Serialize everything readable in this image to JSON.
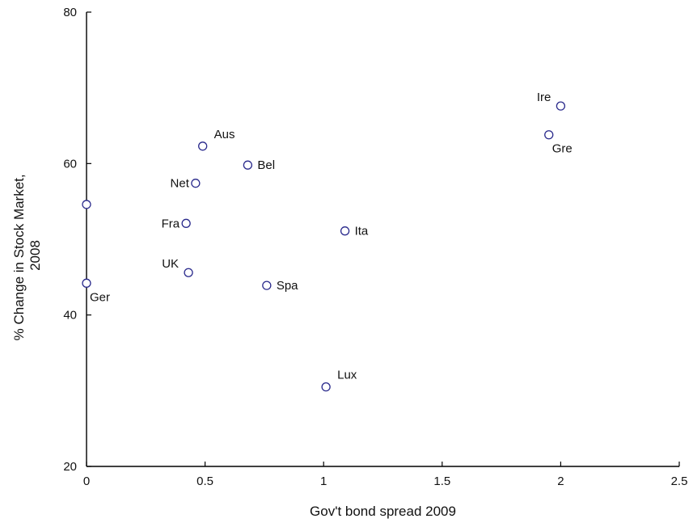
{
  "chart_data": {
    "type": "scatter",
    "xlabel": "Gov't bond spread 2009",
    "ylabel_lines": [
      "% Change in Stock Market,",
      "2008"
    ],
    "xlim": [
      0,
      2.5
    ],
    "ylim": [
      20,
      80
    ],
    "xticks": [
      {
        "value": 0,
        "label": "0"
      },
      {
        "value": 0.5,
        "label": "0.5"
      },
      {
        "value": 1,
        "label": "1"
      },
      {
        "value": 1.5,
        "label": "1.5"
      },
      {
        "value": 2,
        "label": "2"
      },
      {
        "value": 2.5,
        "label": "2.5"
      }
    ],
    "yticks": [
      {
        "value": 20,
        "label": "20"
      },
      {
        "value": 40,
        "label": "40"
      },
      {
        "value": 60,
        "label": "60"
      },
      {
        "value": 80,
        "label": "80"
      }
    ],
    "grid": false,
    "marker_color": "#2a2a8c",
    "points": [
      {
        "label": "Ire",
        "x": 2.0,
        "y": 67.6,
        "label_side": "upper-left"
      },
      {
        "label": "Gre",
        "x": 1.95,
        "y": 63.8,
        "label_side": "lower-right"
      },
      {
        "label": "Aus",
        "x": 0.49,
        "y": 62.3,
        "label_side": "upper-right"
      },
      {
        "label": "Bel",
        "x": 0.68,
        "y": 59.8,
        "label_side": "right"
      },
      {
        "label": "Net",
        "x": 0.46,
        "y": 57.4,
        "label_side": "left"
      },
      {
        "label": "",
        "x": 0.0,
        "y": 54.6,
        "label_side": "none"
      },
      {
        "label": "Fra",
        "x": 0.42,
        "y": 52.1,
        "label_side": "left"
      },
      {
        "label": "Ita",
        "x": 1.09,
        "y": 51.1,
        "label_side": "right"
      },
      {
        "label": "UK",
        "x": 0.43,
        "y": 45.6,
        "label_side": "upper-left"
      },
      {
        "label": "Ger",
        "x": 0.0,
        "y": 44.2,
        "label_side": "lower-right"
      },
      {
        "label": "Spa",
        "x": 0.76,
        "y": 43.9,
        "label_side": "right"
      },
      {
        "label": "Lux",
        "x": 1.01,
        "y": 30.5,
        "label_side": "upper-right"
      }
    ]
  }
}
